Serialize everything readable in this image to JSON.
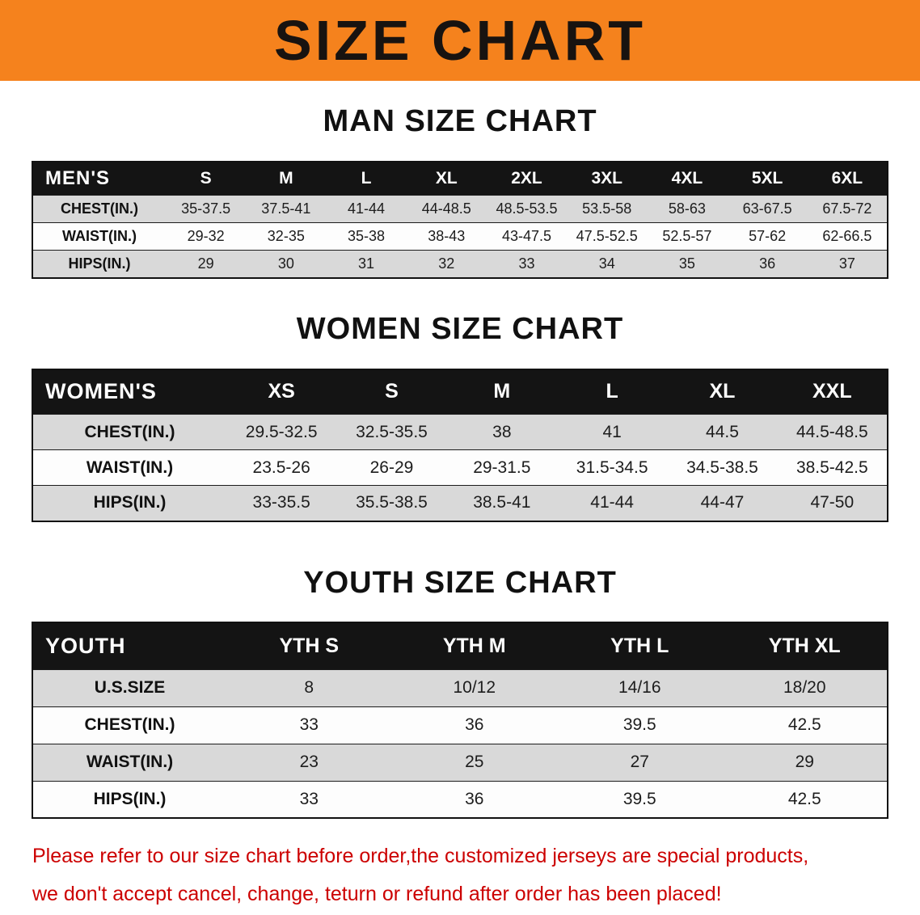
{
  "banner": {
    "title": "SIZE CHART",
    "bg_color": "#f5821d"
  },
  "sections": [
    {
      "id": "men",
      "heading": "MAN SIZE CHART",
      "table": {
        "header": [
          "MEN'S",
          "S",
          "M",
          "L",
          "XL",
          "2XL",
          "3XL",
          "4XL",
          "5XL",
          "6XL"
        ],
        "rows": [
          {
            "label": "CHEST(IN.)",
            "values": [
              "35-37.5",
              "37.5-41",
              "41-44",
              "44-48.5",
              "48.5-53.5",
              "53.5-58",
              "58-63",
              "63-67.5",
              "67.5-72"
            ]
          },
          {
            "label": "WAIST(IN.)",
            "values": [
              "29-32",
              "32-35",
              "35-38",
              "38-43",
              "43-47.5",
              "47.5-52.5",
              "52.5-57",
              "57-62",
              "62-66.5"
            ]
          },
          {
            "label": "HIPS(IN.)",
            "values": [
              "29",
              "30",
              "31",
              "32",
              "33",
              "34",
              "35",
              "36",
              "37"
            ]
          }
        ]
      }
    },
    {
      "id": "women",
      "heading": "WOMEN SIZE CHART",
      "table": {
        "header": [
          "WOMEN'S",
          "XS",
          "S",
          "M",
          "L",
          "XL",
          "XXL"
        ],
        "rows": [
          {
            "label": "CHEST(IN.)",
            "values": [
              "29.5-32.5",
              "32.5-35.5",
              "38",
              "41",
              "44.5",
              "44.5-48.5"
            ]
          },
          {
            "label": "WAIST(IN.)",
            "values": [
              "23.5-26",
              "26-29",
              "29-31.5",
              "31.5-34.5",
              "34.5-38.5",
              "38.5-42.5"
            ]
          },
          {
            "label": "HIPS(IN.)",
            "values": [
              "33-35.5",
              "35.5-38.5",
              "38.5-41",
              "41-44",
              "44-47",
              "47-50"
            ]
          }
        ]
      }
    },
    {
      "id": "youth",
      "heading": "YOUTH SIZE CHART",
      "table": {
        "header": [
          "YOUTH",
          "YTH S",
          "YTH M",
          "YTH L",
          "YTH XL"
        ],
        "rows": [
          {
            "label": "U.S.SIZE",
            "values": [
              "8",
              "10/12",
              "14/16",
              "18/20"
            ]
          },
          {
            "label": "CHEST(IN.)",
            "values": [
              "33",
              "36",
              "39.5",
              "42.5"
            ]
          },
          {
            "label": "WAIST(IN.)",
            "values": [
              "23",
              "25",
              "27",
              "29"
            ]
          },
          {
            "label": "HIPS(IN.)",
            "values": [
              "33",
              "36",
              "39.5",
              "42.5"
            ]
          }
        ]
      }
    }
  ],
  "disclaimer": {
    "line1": "Please refer to our size chart before order,the customized jerseys are special products,",
    "line2": "we don't accept cancel, change, teturn or refund after order has been placed!",
    "text_color": "#cc0000"
  }
}
